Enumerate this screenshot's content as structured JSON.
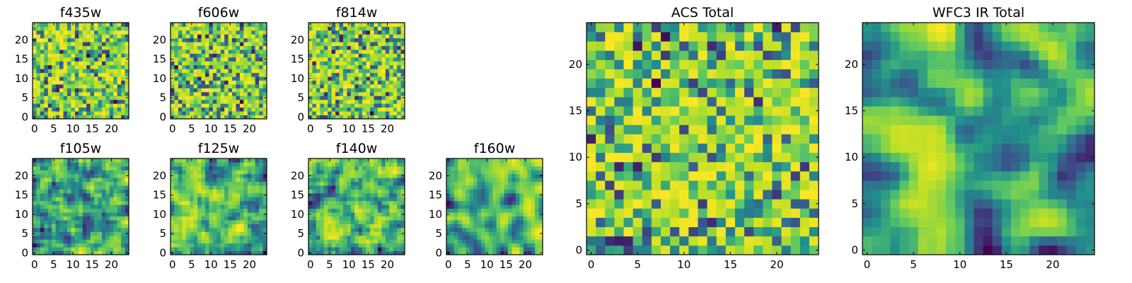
{
  "chart_data": [
    {
      "type": "heatmap",
      "title": "f435w",
      "x_ticks": [
        "0",
        "5",
        "10",
        "15",
        "20"
      ],
      "y_ticks": [
        "0",
        "5",
        "10",
        "15",
        "20"
      ],
      "grid_size": 25,
      "seed": 11,
      "smooth": 0,
      "xlim": [
        -0.5,
        24.5
      ],
      "ylim": [
        -0.5,
        24.5
      ]
    },
    {
      "type": "heatmap",
      "title": "f606w",
      "x_ticks": [
        "0",
        "5",
        "10",
        "15",
        "20"
      ],
      "y_ticks": [
        "0",
        "5",
        "10",
        "15",
        "20"
      ],
      "grid_size": 25,
      "seed": 23,
      "smooth": 0,
      "xlim": [
        -0.5,
        24.5
      ],
      "ylim": [
        -0.5,
        24.5
      ]
    },
    {
      "type": "heatmap",
      "title": "f814w",
      "x_ticks": [
        "0",
        "5",
        "10",
        "15",
        "20"
      ],
      "y_ticks": [
        "0",
        "5",
        "10",
        "15",
        "20"
      ],
      "grid_size": 25,
      "seed": 37,
      "smooth": 0,
      "xlim": [
        -0.5,
        24.5
      ],
      "ylim": [
        -0.5,
        24.5
      ]
    },
    {
      "type": "heatmap",
      "title": "f105w",
      "x_ticks": [
        "0",
        "5",
        "10",
        "15",
        "20"
      ],
      "y_ticks": [
        "0",
        "5",
        "10",
        "15",
        "20"
      ],
      "grid_size": 25,
      "seed": 41,
      "smooth": 1,
      "xlim": [
        -0.5,
        24.5
      ],
      "ylim": [
        -0.5,
        24.5
      ]
    },
    {
      "type": "heatmap",
      "title": "f125w",
      "x_ticks": [
        "0",
        "5",
        "10",
        "15",
        "20"
      ],
      "y_ticks": [
        "0",
        "5",
        "10",
        "15",
        "20"
      ],
      "grid_size": 25,
      "seed": 53,
      "smooth": 1,
      "xlim": [
        -0.5,
        24.5
      ],
      "ylim": [
        -0.5,
        24.5
      ]
    },
    {
      "type": "heatmap",
      "title": "f140w",
      "x_ticks": [
        "0",
        "5",
        "10",
        "15",
        "20"
      ],
      "y_ticks": [
        "0",
        "5",
        "10",
        "15",
        "20"
      ],
      "grid_size": 25,
      "seed": 67,
      "smooth": 1,
      "xlim": [
        -0.5,
        24.5
      ],
      "ylim": [
        -0.5,
        24.5
      ]
    },
    {
      "type": "heatmap",
      "title": "f160w",
      "x_ticks": [
        "0",
        "5",
        "10",
        "15",
        "20"
      ],
      "y_ticks": [
        "0",
        "5",
        "10",
        "15",
        "20"
      ],
      "grid_size": 25,
      "seed": 79,
      "smooth": 2,
      "xlim": [
        -0.5,
        24.5
      ],
      "ylim": [
        -0.5,
        24.5
      ]
    },
    {
      "type": "heatmap",
      "title": "ACS Total",
      "x_ticks": [
        "0",
        "5",
        "10",
        "15",
        "20"
      ],
      "y_ticks": [
        "0",
        "5",
        "10",
        "15",
        "20"
      ],
      "grid_size": 25,
      "seed": 97,
      "smooth": 0,
      "xlim": [
        -0.5,
        24.5
      ],
      "ylim": [
        -0.5,
        24.5
      ]
    },
    {
      "type": "heatmap",
      "title": "WFC3 IR Total",
      "x_ticks": [
        "0",
        "5",
        "10",
        "15",
        "20"
      ],
      "y_ticks": [
        "0",
        "5",
        "10",
        "15",
        "20"
      ],
      "grid_size": 25,
      "seed": 101,
      "smooth": 2,
      "xlim": [
        -0.5,
        24.5
      ],
      "ylim": [
        -0.5,
        24.5
      ]
    }
  ],
  "colormap": [
    "#440154",
    "#3b528b",
    "#21918c",
    "#5ec962",
    "#bddf26",
    "#fde725"
  ]
}
